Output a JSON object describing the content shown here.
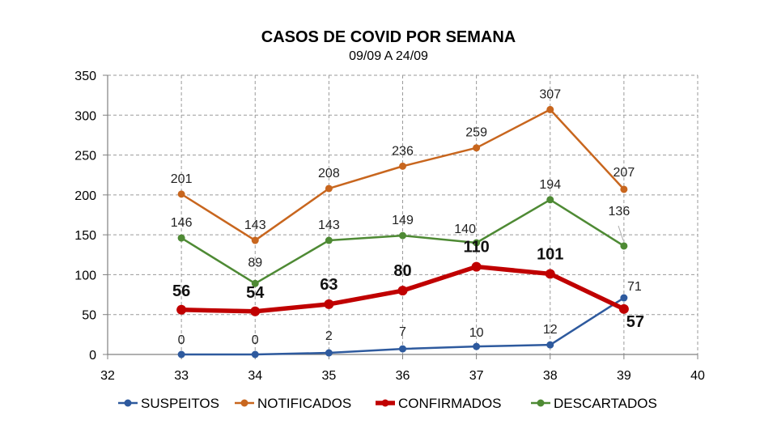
{
  "chart_data": {
    "type": "line",
    "title": "CASOS DE COVID POR SEMANA",
    "subtitle": "09/09 A 24/09",
    "xlabel": "",
    "ylabel": "",
    "xlim": [
      32,
      40
    ],
    "ylim": [
      0,
      350
    ],
    "xticks": [
      32,
      33,
      34,
      35,
      36,
      37,
      38,
      39,
      40
    ],
    "yticks": [
      0,
      50,
      100,
      150,
      200,
      250,
      300,
      350
    ],
    "grid": true,
    "legend_position": "bottom",
    "x": [
      33,
      34,
      35,
      36,
      37,
      38,
      39
    ],
    "series": [
      {
        "name": "SUSPEITOS",
        "color": "#2E5A9E",
        "values": [
          0,
          0,
          2,
          7,
          10,
          12,
          71
        ]
      },
      {
        "name": "NOTIFICADOS",
        "color": "#C8661E",
        "values": [
          201,
          143,
          208,
          236,
          259,
          307,
          207
        ]
      },
      {
        "name": "CONFIRMADOS",
        "color": "#C00000",
        "values": [
          56,
          54,
          63,
          80,
          110,
          101,
          57
        ]
      },
      {
        "name": "DESCARTADOS",
        "color": "#4E8A34",
        "values": [
          146,
          89,
          143,
          149,
          140,
          194,
          136
        ]
      }
    ]
  }
}
